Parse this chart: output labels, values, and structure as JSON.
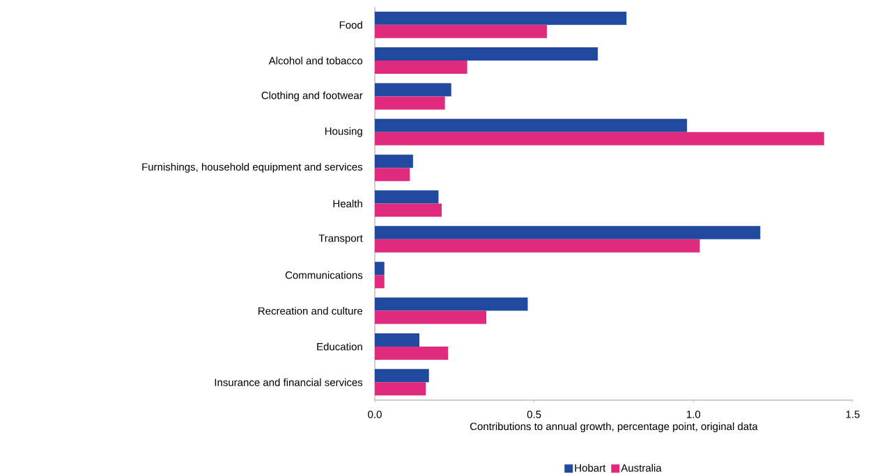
{
  "chart_data": {
    "type": "bar",
    "orientation": "horizontal",
    "categories": [
      "Food",
      "Alcohol and tobacco",
      "Clothing and footwear",
      "Housing",
      "Furnishings, household equipment and services",
      "Health",
      "Transport",
      "Communications",
      "Recreation and culture",
      "Education",
      "Insurance and financial services"
    ],
    "series": [
      {
        "name": "Hobart",
        "color": "#214a9e",
        "values": [
          0.79,
          0.7,
          0.24,
          0.98,
          0.12,
          0.2,
          1.21,
          0.03,
          0.48,
          0.14,
          0.17
        ]
      },
      {
        "name": "Australia",
        "color": "#df2a7e",
        "values": [
          0.54,
          0.29,
          0.22,
          1.41,
          0.11,
          0.21,
          1.02,
          0.03,
          0.35,
          0.23,
          0.16
        ]
      }
    ],
    "xlabel": "Contributions to annual growth, percentage point, original data",
    "xlim": [
      0,
      1.5
    ],
    "xticks": [
      {
        "value": 0,
        "label": "0.0"
      },
      {
        "value": 0.5,
        "label": "0.5"
      },
      {
        "value": 1,
        "label": "1.0"
      },
      {
        "value": 1.5,
        "label": "1.5"
      }
    ],
    "legend": "bottom",
    "grid": false
  }
}
